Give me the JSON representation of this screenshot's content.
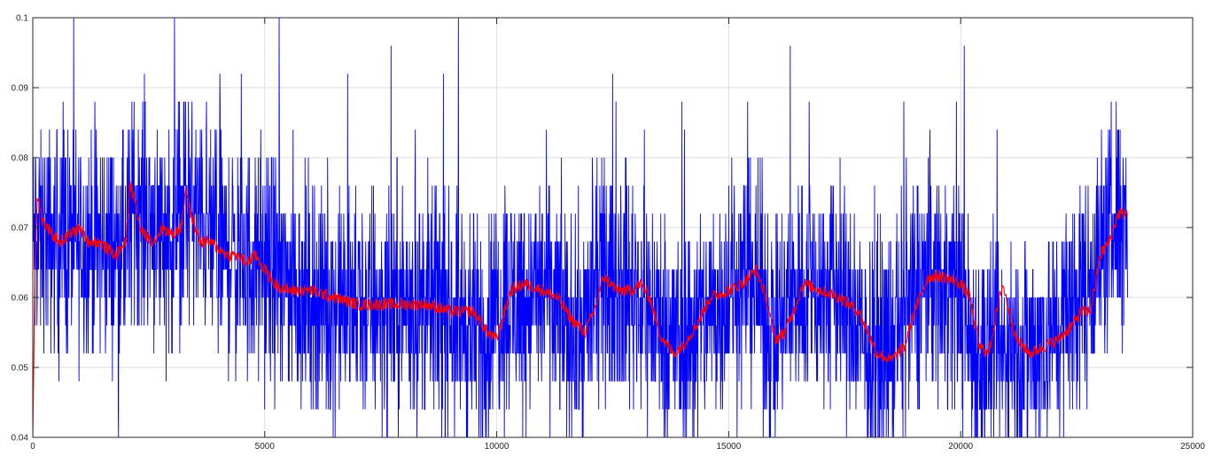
{
  "chart_data": {
    "type": "line",
    "title": "",
    "xlabel": "",
    "ylabel": "",
    "xlim": [
      0,
      25000
    ],
    "ylim": [
      0.04,
      0.1
    ],
    "grid": true,
    "x_ticks": [
      0,
      5000,
      10000,
      15000,
      20000,
      25000
    ],
    "x_tick_labels": [
      "0",
      "5000",
      "10000",
      "15000",
      "20000",
      "25000"
    ],
    "y_ticks": [
      0.04,
      0.05,
      0.06,
      0.07,
      0.08,
      0.09,
      0.1
    ],
    "y_tick_labels": [
      "0.04",
      "0.05",
      "0.06",
      "0.07",
      "0.08",
      "0.09",
      "0.1"
    ],
    "series": [
      {
        "color": "#0000ff",
        "style": "raw",
        "description_values": "noisy signal quantized in steps of ~0.004, fluctuating around the smoothed trend",
        "x": [
          0,
          1000,
          2000,
          2200,
          3000,
          3300,
          4000,
          5000,
          6000,
          7000,
          8000,
          9000,
          9700,
          10000,
          11000,
          11800,
          12200,
          12900,
          13300,
          14000,
          15000,
          15500,
          16000,
          16500,
          17500,
          18000,
          18500,
          19300,
          20000,
          20300,
          21000,
          22000,
          22500,
          23000,
          23400,
          23600
        ],
        "values": [
          0.068,
          0.068,
          0.067,
          0.074,
          0.068,
          0.074,
          0.067,
          0.064,
          0.06,
          0.059,
          0.059,
          0.059,
          0.054,
          0.059,
          0.061,
          0.054,
          0.062,
          0.062,
          0.058,
          0.053,
          0.061,
          0.064,
          0.054,
          0.062,
          0.06,
          0.051,
          0.053,
          0.064,
          0.061,
          0.052,
          0.051,
          0.055,
          0.06,
          0.066,
          0.072,
          0.072
        ]
      },
      {
        "color": "#ff0000",
        "style": "smoothed",
        "x": [
          0,
          50,
          100,
          200,
          400,
          600,
          800,
          1000,
          1200,
          1400,
          1600,
          1800,
          2000,
          2100,
          2200,
          2300,
          2400,
          2600,
          2800,
          3000,
          3200,
          3300,
          3400,
          3600,
          3800,
          4000,
          4200,
          4400,
          4600,
          4800,
          5000,
          5200,
          5500,
          6000,
          6500,
          7000,
          7500,
          8000,
          8500,
          9000,
          9500,
          9800,
          10000,
          10300,
          10600,
          11000,
          11300,
          11600,
          11900,
          12100,
          12300,
          12600,
          12900,
          13100,
          13300,
          13500,
          13800,
          14000,
          14300,
          14600,
          15000,
          15300,
          15600,
          15800,
          16000,
          16200,
          16400,
          16600,
          17000,
          17400,
          17800,
          18000,
          18200,
          18500,
          18800,
          19000,
          19300,
          19600,
          20000,
          20200,
          20400,
          20600,
          20900,
          21200,
          21500,
          21800,
          22100,
          22400,
          22600,
          22800,
          23000,
          23200,
          23400,
          23600
        ],
        "values": [
          0.04,
          0.065,
          0.075,
          0.071,
          0.069,
          0.068,
          0.069,
          0.07,
          0.068,
          0.068,
          0.067,
          0.066,
          0.068,
          0.076,
          0.074,
          0.07,
          0.069,
          0.068,
          0.07,
          0.069,
          0.07,
          0.076,
          0.072,
          0.068,
          0.068,
          0.067,
          0.066,
          0.066,
          0.065,
          0.066,
          0.064,
          0.062,
          0.061,
          0.061,
          0.06,
          0.059,
          0.059,
          0.059,
          0.059,
          0.058,
          0.058,
          0.055,
          0.054,
          0.061,
          0.062,
          0.061,
          0.06,
          0.057,
          0.055,
          0.058,
          0.063,
          0.061,
          0.061,
          0.062,
          0.06,
          0.055,
          0.052,
          0.053,
          0.056,
          0.06,
          0.061,
          0.062,
          0.064,
          0.06,
          0.054,
          0.055,
          0.058,
          0.062,
          0.061,
          0.06,
          0.058,
          0.055,
          0.052,
          0.051,
          0.053,
          0.058,
          0.063,
          0.063,
          0.062,
          0.06,
          0.053,
          0.052,
          0.062,
          0.054,
          0.052,
          0.053,
          0.054,
          0.056,
          0.058,
          0.058,
          0.066,
          0.068,
          0.072,
          0.072
        ]
      }
    ]
  }
}
